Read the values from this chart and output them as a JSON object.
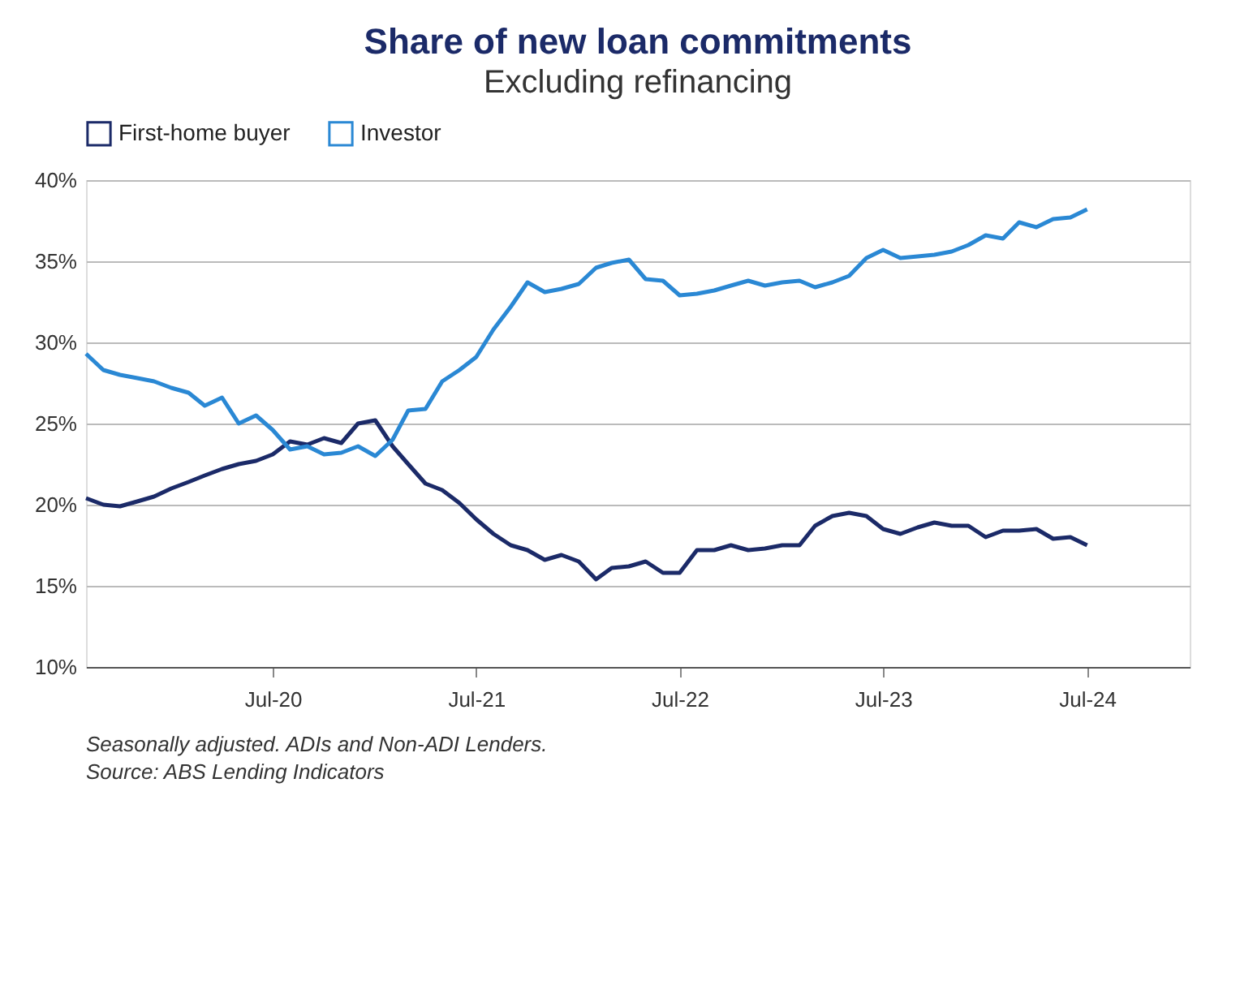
{
  "chart_data": {
    "type": "line",
    "title": "Share of new loan commitments",
    "subtitle": "Excluding refinancing",
    "x": [
      "2019-08",
      "2019-09",
      "2019-10",
      "2019-11",
      "2019-12",
      "2020-01",
      "2020-02",
      "2020-03",
      "2020-04",
      "2020-05",
      "2020-06",
      "2020-07",
      "2020-08",
      "2020-09",
      "2020-10",
      "2020-11",
      "2020-12",
      "2021-01",
      "2021-02",
      "2021-03",
      "2021-04",
      "2021-05",
      "2021-06",
      "2021-07",
      "2021-08",
      "2021-09",
      "2021-10",
      "2021-11",
      "2021-12",
      "2022-01",
      "2022-02",
      "2022-03",
      "2022-04",
      "2022-05",
      "2022-06",
      "2022-07",
      "2022-08",
      "2022-09",
      "2022-10",
      "2022-11",
      "2022-12",
      "2023-01",
      "2023-02",
      "2023-03",
      "2023-04",
      "2023-05",
      "2023-06",
      "2023-07",
      "2023-08",
      "2023-09",
      "2023-10",
      "2023-11",
      "2023-12",
      "2024-01",
      "2024-02",
      "2024-03",
      "2024-04",
      "2024-05",
      "2024-06",
      "2024-07"
    ],
    "series": [
      {
        "name": "First-home buyer",
        "color": "#1b2a68",
        "values": [
          20.4,
          20.0,
          19.9,
          20.2,
          20.5,
          21.0,
          21.4,
          21.8,
          22.2,
          22.5,
          22.7,
          23.1,
          23.9,
          23.7,
          24.1,
          23.8,
          25.0,
          25.2,
          23.6,
          22.5,
          21.3,
          20.9,
          20.1,
          19.1,
          18.2,
          17.5,
          17.2,
          16.6,
          16.9,
          16.5,
          15.4,
          16.1,
          16.2,
          16.5,
          15.8,
          15.8,
          17.2,
          17.2,
          17.5,
          17.2,
          17.3,
          17.5,
          17.5,
          18.7,
          19.3,
          19.5,
          19.3,
          18.5,
          18.2,
          18.6,
          18.9,
          18.7,
          18.7,
          18.0,
          18.4,
          18.4,
          18.5,
          17.9,
          18.0,
          17.5
        ]
      },
      {
        "name": "Investor",
        "color": "#2a88d4",
        "values": [
          29.3,
          28.3,
          28.0,
          27.8,
          27.6,
          27.2,
          26.9,
          26.1,
          26.6,
          25.0,
          25.5,
          24.6,
          23.4,
          23.6,
          23.1,
          23.2,
          23.6,
          23.0,
          24.0,
          25.8,
          25.9,
          27.6,
          28.3,
          29.1,
          30.8,
          32.2,
          33.7,
          33.1,
          33.3,
          33.6,
          34.6,
          34.9,
          35.1,
          33.9,
          33.8,
          32.9,
          33.0,
          33.2,
          33.5,
          33.8,
          33.5,
          33.7,
          33.8,
          33.4,
          33.7,
          34.1,
          35.2,
          35.7,
          35.2,
          35.3,
          35.4,
          35.6,
          36.0,
          36.6,
          36.4,
          37.4,
          37.1,
          37.6,
          37.7,
          38.2
        ]
      }
    ],
    "xlim": [
      "2019-08",
      "2025-01"
    ],
    "xticks": [
      {
        "value": "2020-07",
        "label": "Jul-20"
      },
      {
        "value": "2021-07",
        "label": "Jul-21"
      },
      {
        "value": "2022-07",
        "label": "Jul-22"
      },
      {
        "value": "2023-07",
        "label": "Jul-23"
      },
      {
        "value": "2024-07",
        "label": "Jul-24"
      }
    ],
    "ylim": [
      10,
      40
    ],
    "yticks": [
      {
        "value": 10,
        "label": "10%"
      },
      {
        "value": 15,
        "label": "15%"
      },
      {
        "value": 20,
        "label": "20%"
      },
      {
        "value": 25,
        "label": "25%"
      },
      {
        "value": 30,
        "label": "30%"
      },
      {
        "value": 35,
        "label": "35%"
      },
      {
        "value": 40,
        "label": "40%"
      }
    ],
    "grid": "y",
    "legend": "top",
    "marker": "none",
    "line_style": "solid",
    "annotations": [
      "Seasonally adjusted. ADIs and Non-ADI Lenders.",
      "Source: ABS Lending Indicators"
    ]
  }
}
